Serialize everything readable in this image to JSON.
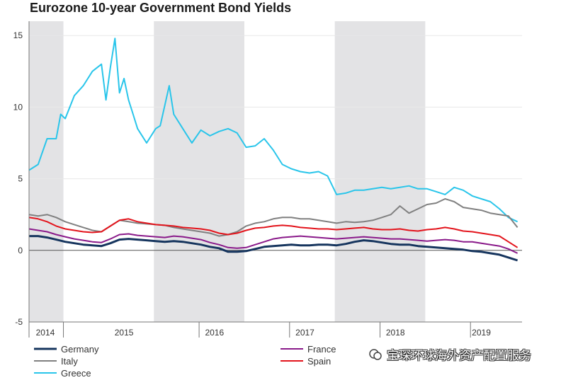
{
  "watermark": {
    "text": "宝琛环球海外资产配置服务"
  },
  "chart_data": {
    "type": "line",
    "title": "Eurozone 10-year Government Bond Yields",
    "xlabel": "",
    "ylabel": "",
    "ylim": [
      -5,
      16
    ],
    "yticks": [
      -5,
      0,
      5,
      10,
      15
    ],
    "xlim": [
      2013.9,
      2019.35
    ],
    "xtick_labels": [
      {
        "label": "2014",
        "center": 2014.08
      },
      {
        "label": "2015",
        "center": 2014.95
      },
      {
        "label": "2016",
        "center": 2015.95
      },
      {
        "label": "2017",
        "center": 2016.95
      },
      {
        "label": "2018",
        "center": 2017.95
      },
      {
        "label": "2019",
        "center": 2018.9
      }
    ],
    "year_boundaries": [
      2014.28,
      2015.78,
      2016.78,
      2017.78,
      2018.78
    ],
    "shaded_periods": [
      [
        2013.9,
        2014.28
      ],
      [
        2015.28,
        2016.28
      ],
      [
        2017.28,
        2018.28
      ]
    ],
    "grid": true,
    "legend_position": "bottom",
    "series": [
      {
        "name": "Germany",
        "color": "#16355e",
        "x": [
          2013.9,
          2014.0,
          2014.1,
          2014.2,
          2014.3,
          2014.4,
          2014.5,
          2014.6,
          2014.7,
          2014.8,
          2014.9,
          2015.0,
          2015.1,
          2015.2,
          2015.3,
          2015.4,
          2015.5,
          2015.6,
          2015.7,
          2015.8,
          2015.9,
          2016.0,
          2016.1,
          2016.2,
          2016.3,
          2016.4,
          2016.5,
          2016.6,
          2016.7,
          2016.8,
          2016.9,
          2017.0,
          2017.1,
          2017.2,
          2017.3,
          2017.4,
          2017.5,
          2017.6,
          2017.7,
          2017.8,
          2017.9,
          2018.0,
          2018.1,
          2018.2,
          2018.3,
          2018.4,
          2018.5,
          2018.6,
          2018.7,
          2018.8,
          2018.9,
          2019.0,
          2019.1,
          2019.2,
          2019.3
        ],
        "values": [
          1.0,
          1.0,
          0.9,
          0.75,
          0.6,
          0.5,
          0.4,
          0.35,
          0.3,
          0.5,
          0.75,
          0.8,
          0.75,
          0.7,
          0.65,
          0.6,
          0.65,
          0.6,
          0.5,
          0.4,
          0.25,
          0.15,
          -0.1,
          -0.1,
          -0.05,
          0.1,
          0.25,
          0.3,
          0.35,
          0.4,
          0.35,
          0.35,
          0.4,
          0.4,
          0.35,
          0.45,
          0.6,
          0.7,
          0.65,
          0.55,
          0.45,
          0.4,
          0.4,
          0.3,
          0.25,
          0.2,
          0.15,
          0.1,
          0.05,
          -0.05,
          -0.1,
          -0.2,
          -0.3,
          -0.5,
          -0.7
        ]
      },
      {
        "name": "France",
        "color": "#8a1a8a",
        "x": [
          2013.9,
          2014.0,
          2014.1,
          2014.2,
          2014.3,
          2014.4,
          2014.5,
          2014.6,
          2014.7,
          2014.8,
          2014.9,
          2015.0,
          2015.1,
          2015.2,
          2015.3,
          2015.4,
          2015.5,
          2015.6,
          2015.7,
          2015.8,
          2015.9,
          2016.0,
          2016.1,
          2016.2,
          2016.3,
          2016.4,
          2016.5,
          2016.6,
          2016.7,
          2016.8,
          2016.9,
          2017.0,
          2017.1,
          2017.2,
          2017.3,
          2017.4,
          2017.5,
          2017.6,
          2017.7,
          2017.8,
          2017.9,
          2018.0,
          2018.1,
          2018.2,
          2018.3,
          2018.4,
          2018.5,
          2018.6,
          2018.7,
          2018.8,
          2018.9,
          2019.0,
          2019.1,
          2019.2,
          2019.3
        ],
        "values": [
          1.5,
          1.4,
          1.3,
          1.1,
          0.95,
          0.8,
          0.7,
          0.6,
          0.55,
          0.8,
          1.1,
          1.15,
          1.05,
          1.0,
          0.95,
          0.9,
          1.0,
          0.95,
          0.85,
          0.75,
          0.55,
          0.4,
          0.2,
          0.15,
          0.2,
          0.4,
          0.6,
          0.8,
          0.9,
          0.95,
          1.0,
          0.95,
          0.9,
          0.85,
          0.8,
          0.85,
          0.9,
          0.95,
          0.9,
          0.85,
          0.8,
          0.8,
          0.75,
          0.7,
          0.65,
          0.7,
          0.75,
          0.7,
          0.6,
          0.6,
          0.5,
          0.4,
          0.3,
          0.1,
          -0.2
        ]
      },
      {
        "name": "Italy",
        "color": "#808080",
        "x": [
          2013.9,
          2014.0,
          2014.1,
          2014.2,
          2014.3,
          2014.4,
          2014.5,
          2014.6,
          2014.7,
          2014.8,
          2014.9,
          2015.0,
          2015.1,
          2015.2,
          2015.3,
          2015.4,
          2015.5,
          2015.6,
          2015.7,
          2015.8,
          2015.9,
          2016.0,
          2016.1,
          2016.2,
          2016.3,
          2016.4,
          2016.5,
          2016.6,
          2016.7,
          2016.8,
          2016.9,
          2017.0,
          2017.1,
          2017.2,
          2017.3,
          2017.4,
          2017.5,
          2017.6,
          2017.7,
          2017.8,
          2017.9,
          2018.0,
          2018.1,
          2018.2,
          2018.3,
          2018.4,
          2018.5,
          2018.6,
          2018.7,
          2018.8,
          2018.9,
          2019.0,
          2019.1,
          2019.2,
          2019.3
        ],
        "values": [
          2.5,
          2.4,
          2.5,
          2.3,
          2.0,
          1.8,
          1.6,
          1.4,
          1.3,
          1.7,
          2.1,
          2.0,
          1.9,
          1.85,
          1.8,
          1.75,
          1.6,
          1.5,
          1.4,
          1.3,
          1.2,
          1.0,
          1.1,
          1.3,
          1.7,
          1.9,
          2.0,
          2.2,
          2.3,
          2.3,
          2.2,
          2.2,
          2.1,
          2.0,
          1.9,
          2.0,
          1.95,
          2.0,
          2.1,
          2.3,
          2.5,
          3.1,
          2.6,
          2.9,
          3.2,
          3.3,
          3.6,
          3.4,
          3.0,
          2.9,
          2.8,
          2.6,
          2.5,
          2.4,
          1.6
        ]
      },
      {
        "name": "Spain",
        "color": "#e3141c",
        "x": [
          2013.9,
          2014.0,
          2014.1,
          2014.2,
          2014.3,
          2014.4,
          2014.5,
          2014.6,
          2014.7,
          2014.8,
          2014.9,
          2015.0,
          2015.1,
          2015.2,
          2015.3,
          2015.4,
          2015.5,
          2015.6,
          2015.7,
          2015.8,
          2015.9,
          2016.0,
          2016.1,
          2016.2,
          2016.3,
          2016.4,
          2016.5,
          2016.6,
          2016.7,
          2016.8,
          2016.9,
          2017.0,
          2017.1,
          2017.2,
          2017.3,
          2017.4,
          2017.5,
          2017.6,
          2017.7,
          2017.8,
          2017.9,
          2018.0,
          2018.1,
          2018.2,
          2018.3,
          2018.4,
          2018.5,
          2018.6,
          2018.7,
          2018.8,
          2018.9,
          2019.0,
          2019.1,
          2019.2,
          2019.3
        ],
        "values": [
          2.3,
          2.2,
          2.0,
          1.7,
          1.5,
          1.4,
          1.3,
          1.25,
          1.3,
          1.7,
          2.1,
          2.2,
          2.0,
          1.9,
          1.8,
          1.75,
          1.7,
          1.6,
          1.55,
          1.5,
          1.4,
          1.2,
          1.1,
          1.2,
          1.4,
          1.55,
          1.6,
          1.7,
          1.75,
          1.7,
          1.6,
          1.55,
          1.5,
          1.5,
          1.45,
          1.5,
          1.55,
          1.6,
          1.5,
          1.45,
          1.45,
          1.5,
          1.4,
          1.35,
          1.45,
          1.5,
          1.6,
          1.5,
          1.35,
          1.3,
          1.2,
          1.1,
          1.0,
          0.6,
          0.2
        ]
      },
      {
        "name": "Greece",
        "color": "#29c5ea",
        "x": [
          2013.9,
          2014.0,
          2014.1,
          2014.2,
          2014.25,
          2014.3,
          2014.4,
          2014.5,
          2014.6,
          2014.7,
          2014.75,
          2014.8,
          2014.85,
          2014.9,
          2014.95,
          2015.0,
          2015.05,
          2015.1,
          2015.2,
          2015.3,
          2015.35,
          2015.45,
          2015.5,
          2015.6,
          2015.7,
          2015.8,
          2015.9,
          2016.0,
          2016.1,
          2016.2,
          2016.3,
          2016.4,
          2016.5,
          2016.6,
          2016.7,
          2016.8,
          2016.9,
          2017.0,
          2017.1,
          2017.2,
          2017.3,
          2017.4,
          2017.5,
          2017.6,
          2017.7,
          2017.8,
          2017.9,
          2018.0,
          2018.1,
          2018.2,
          2018.3,
          2018.4,
          2018.5,
          2018.6,
          2018.7,
          2018.8,
          2018.9,
          2019.0,
          2019.1,
          2019.2,
          2019.3
        ],
        "values": [
          5.6,
          6.0,
          7.8,
          7.8,
          9.5,
          9.2,
          10.8,
          11.5,
          12.5,
          13.0,
          10.5,
          12.8,
          14.8,
          11.0,
          12.0,
          10.5,
          9.5,
          8.5,
          7.5,
          8.5,
          8.7,
          11.5,
          9.5,
          8.5,
          7.5,
          8.4,
          8.0,
          8.3,
          8.5,
          8.2,
          7.2,
          7.3,
          7.8,
          7.0,
          6.0,
          5.7,
          5.5,
          5.4,
          5.5,
          5.2,
          3.9,
          4.0,
          4.2,
          4.2,
          4.3,
          4.4,
          4.3,
          4.4,
          4.5,
          4.3,
          4.3,
          4.1,
          3.9,
          4.4,
          4.2,
          3.8,
          3.6,
          3.4,
          2.9,
          2.3,
          2.0
        ]
      }
    ]
  }
}
